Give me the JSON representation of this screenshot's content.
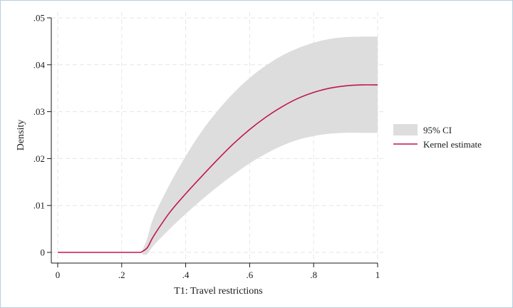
{
  "chart_data": {
    "type": "line",
    "title": "",
    "xlabel": "T1: Travel restrictions",
    "ylabel": "Density",
    "xlim": [
      0,
      1
    ],
    "ylim": [
      0,
      0.05
    ],
    "x_ticks": [
      {
        "value": 0,
        "label": "0"
      },
      {
        "value": 0.2,
        "label": ".2"
      },
      {
        "value": 0.4,
        "label": ".4"
      },
      {
        "value": 0.6,
        "label": ".6"
      },
      {
        "value": 0.8,
        "label": ".8"
      },
      {
        "value": 1,
        "label": "1"
      }
    ],
    "y_ticks": [
      {
        "value": 0,
        "label": "0"
      },
      {
        "value": 0.01,
        "label": ".01"
      },
      {
        "value": 0.02,
        "label": ".02"
      },
      {
        "value": 0.03,
        "label": ".03"
      },
      {
        "value": 0.04,
        "label": ".04"
      },
      {
        "value": 0.05,
        "label": ".05"
      }
    ],
    "grid": true,
    "legend_position": "right",
    "series": [
      {
        "name": "Kernel estimate",
        "kind": "line",
        "color": "#c0174a",
        "x": [
          0,
          0.1,
          0.2,
          0.26,
          0.28,
          0.3,
          0.35,
          0.4,
          0.45,
          0.5,
          0.55,
          0.6,
          0.65,
          0.7,
          0.75,
          0.8,
          0.85,
          0.9,
          0.95,
          1.0
        ],
        "y": [
          0,
          0,
          0,
          0,
          0.001,
          0.0035,
          0.0085,
          0.0125,
          0.0162,
          0.0198,
          0.0232,
          0.0262,
          0.0288,
          0.031,
          0.0328,
          0.0341,
          0.035,
          0.0355,
          0.0357,
          0.0357
        ]
      },
      {
        "name": "95% CI",
        "kind": "band",
        "color": "#dddddd",
        "x": [
          0.265,
          0.28,
          0.3,
          0.35,
          0.4,
          0.45,
          0.5,
          0.55,
          0.6,
          0.65,
          0.7,
          0.75,
          0.8,
          0.85,
          0.9,
          0.95,
          1.0
        ],
        "lower": [
          -0.0005,
          -0.0003,
          0.0015,
          0.005,
          0.0082,
          0.0112,
          0.014,
          0.0166,
          0.019,
          0.021,
          0.0227,
          0.024,
          0.0248,
          0.0253,
          0.0255,
          0.0255,
          0.0255
        ],
        "upper": [
          0.0005,
          0.003,
          0.0075,
          0.0145,
          0.0205,
          0.0258,
          0.0302,
          0.034,
          0.0372,
          0.0398,
          0.0419,
          0.0435,
          0.0447,
          0.0455,
          0.0459,
          0.046,
          0.046
        ]
      }
    ]
  },
  "legend": {
    "ci_label": "95% CI",
    "kernel_label": "Kernel estimate"
  },
  "colors": {
    "line": "#c0174a",
    "band": "#dddddd",
    "grid": "#e6e6e6",
    "axis": "#1a1a1a"
  }
}
